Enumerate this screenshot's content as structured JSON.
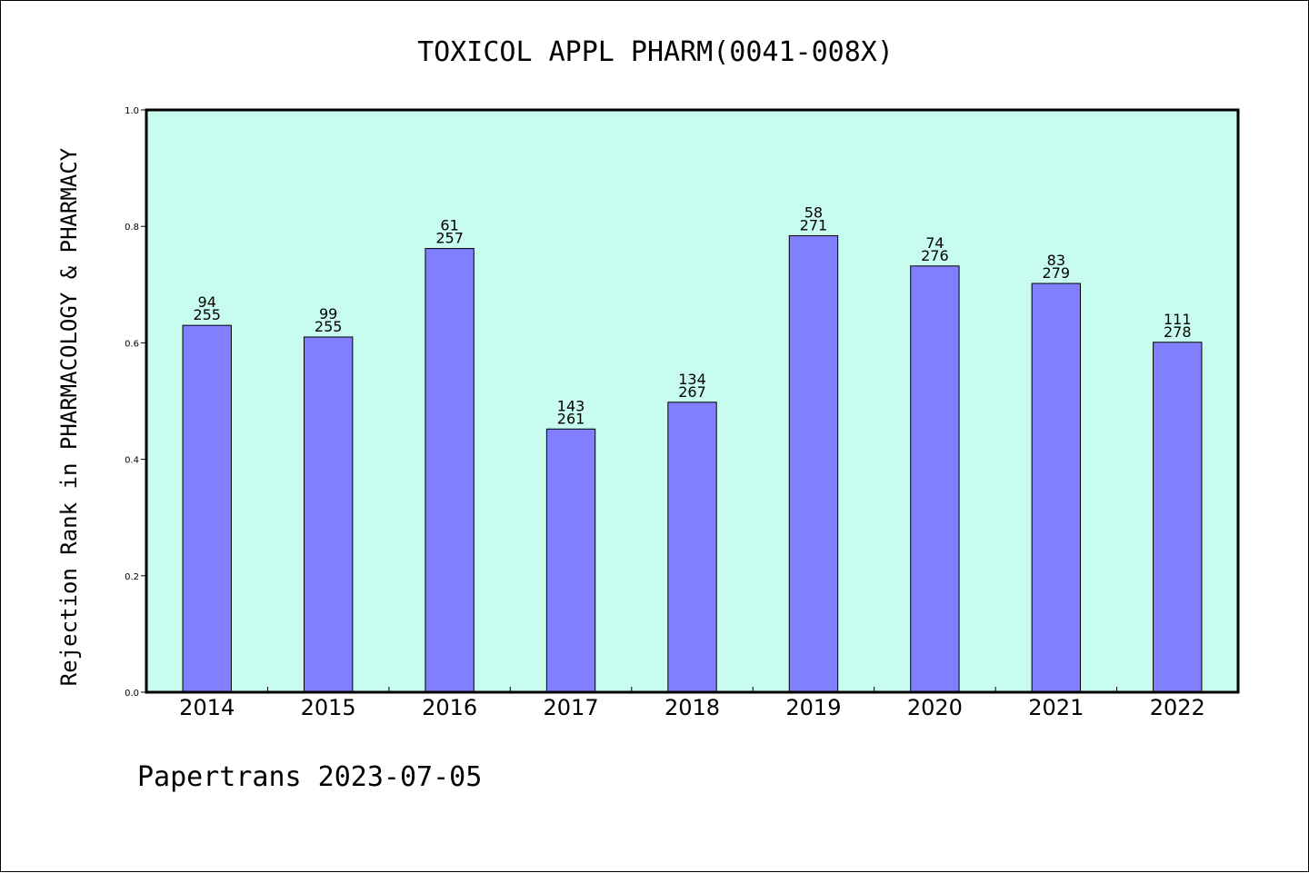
{
  "chart_data": {
    "type": "bar",
    "title": "TOXICOL APPL PHARM(0041-008X)",
    "xlabel": "",
    "ylabel": "Rejection Rank in PHARMACOLOGY & PHARMACY",
    "ylim": [
      0,
      1.0
    ],
    "yticks": [
      "0.0",
      "0.2",
      "0.4",
      "0.6",
      "0.8",
      "1.0"
    ],
    "grid": false,
    "categories": [
      "2014",
      "2015",
      "2016",
      "2017",
      "2018",
      "2019",
      "2020",
      "2021",
      "2022"
    ],
    "values": [
      0.63,
      0.61,
      0.762,
      0.452,
      0.498,
      0.784,
      0.732,
      0.702,
      0.601
    ],
    "rank_labels": [
      "94",
      "99",
      "61",
      "143",
      "134",
      "58",
      "74",
      "83",
      "111"
    ],
    "total_labels": [
      "255",
      "255",
      "257",
      "261",
      "267",
      "271",
      "276",
      "279",
      "278"
    ],
    "colors": {
      "plot_background": "#c8fcee",
      "bar_fill": "#8080ff",
      "bar_stroke": "#000000"
    }
  },
  "footer": {
    "text": "Papertrans 2023-07-05"
  }
}
